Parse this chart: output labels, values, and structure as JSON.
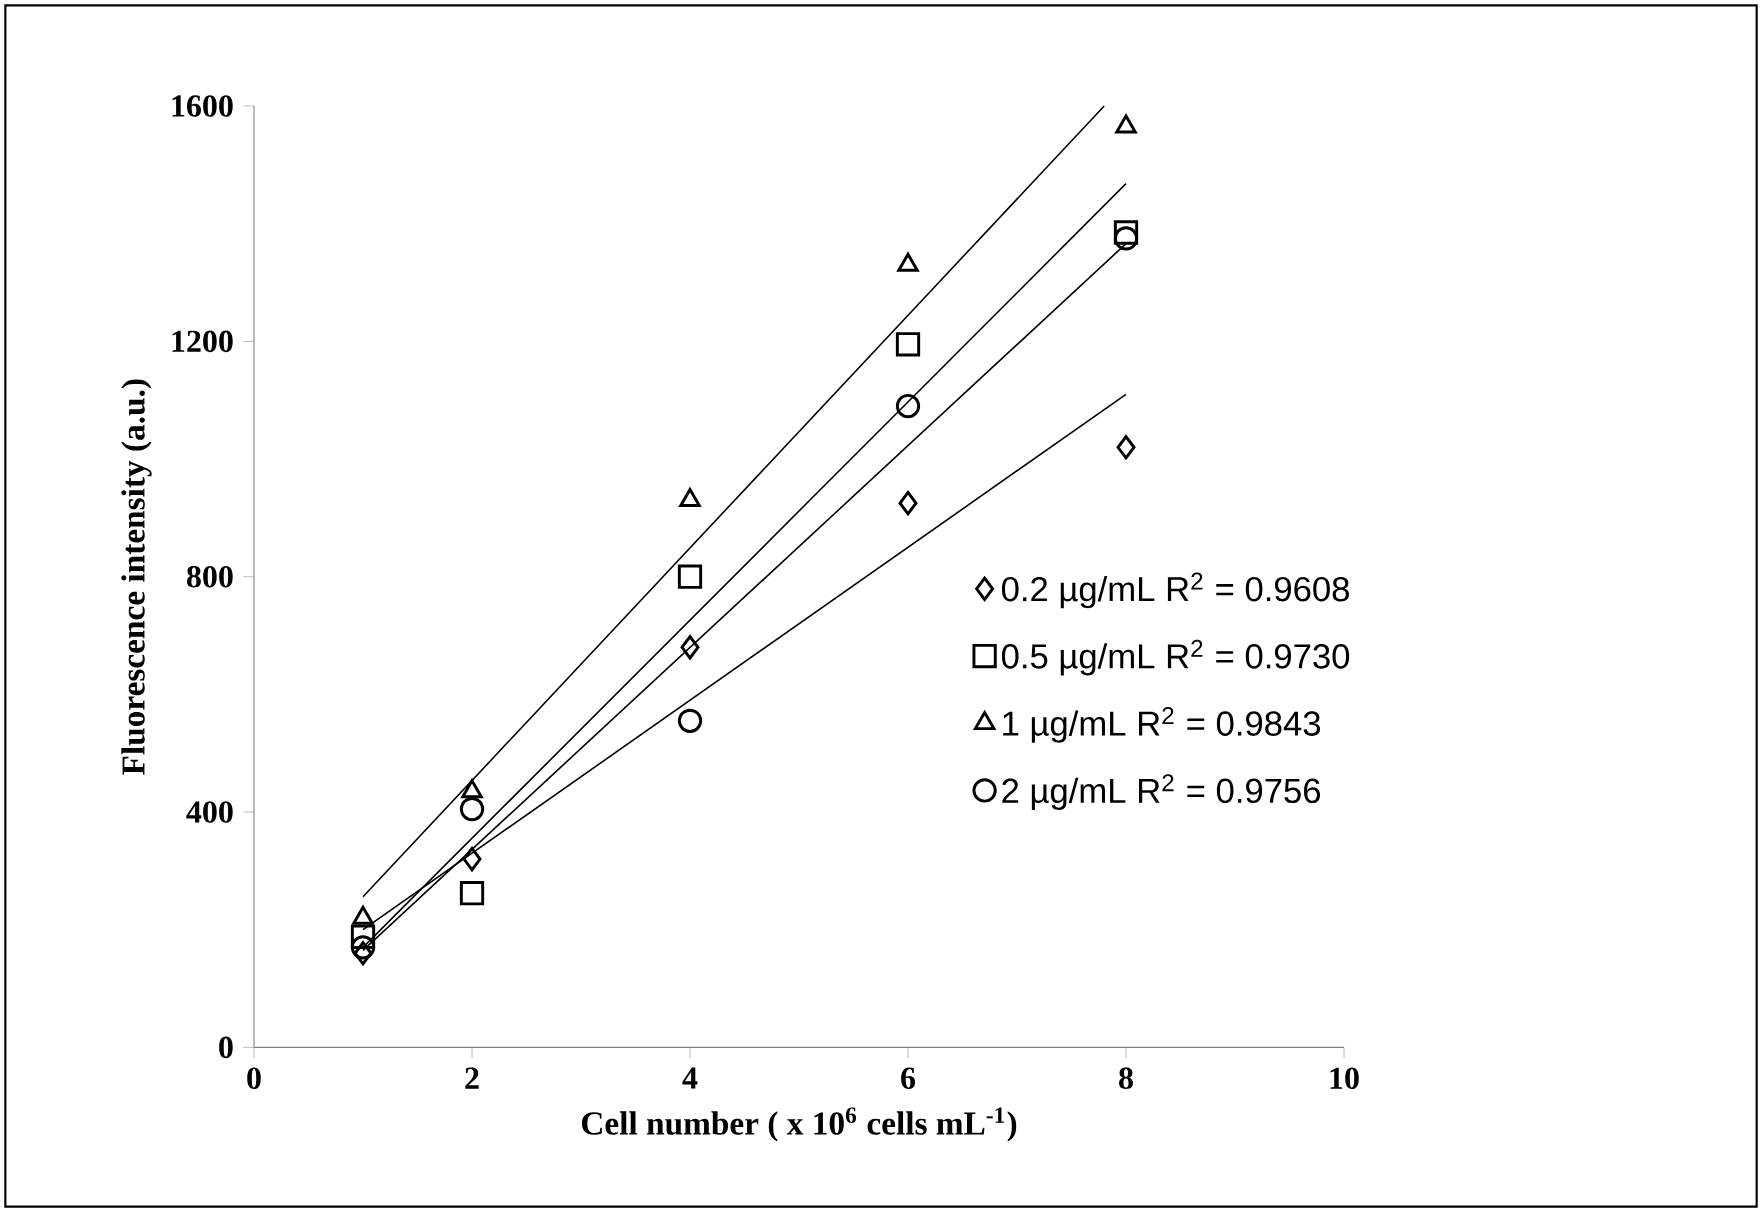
{
  "chart_data": {
    "type": "scatter",
    "xlabel": "Cell number ( x 10$^{6}$ cells mL$^{-1}$)",
    "ylabel": "Fluorescence intensity (a.u.)",
    "xlim": [
      0,
      10
    ],
    "xticks": [
      0,
      2,
      4,
      6,
      8,
      10
    ],
    "ylim": [
      0,
      1600
    ],
    "yticks": [
      0,
      400,
      800,
      1200,
      1600
    ],
    "legend": "right",
    "grid": false,
    "series": [
      {
        "name": "0.2 µg/mL  R$^{2}$ = 0.9608",
        "color": "#000000",
        "marker": "diamond",
        "x": [
          1,
          2,
          4,
          6,
          8
        ],
        "values": [
          160,
          320,
          680,
          925,
          1020
        ]
      },
      {
        "name": "0.5 µg/mL  R$^{2}$ = 0.9730",
        "color": "#000000",
        "marker": "square",
        "x": [
          1,
          2,
          4,
          6,
          8
        ],
        "values": [
          188,
          262,
          800,
          1195,
          1385
        ]
      },
      {
        "name": "1 µg/mL  R$^{2}$ = 0.9843",
        "color": "#000000",
        "marker": "triangle",
        "x": [
          1,
          2,
          4,
          6,
          8
        ],
        "values": [
          220,
          435,
          930,
          1330,
          1565
        ]
      },
      {
        "name": "2 µg/mL  R$^{2}$ = 0.9756",
        "color": "#000000",
        "marker": "circle",
        "x": [
          1,
          2,
          4,
          6,
          8
        ],
        "values": [
          170,
          405,
          555,
          1090,
          1375
        ]
      },
      {
        "type": "line",
        "color": "#000000",
        "marker": "none",
        "x": [
          1,
          8
        ],
        "values": [
          200,
          1110
        ]
      },
      {
        "type": "line",
        "color": "#000000",
        "marker": "none",
        "x": [
          1,
          8
        ],
        "values": [
          170,
          1468
        ]
      },
      {
        "type": "line",
        "color": "#000000",
        "marker": "none",
        "x": [
          1,
          7.8
        ],
        "values": [
          256,
          1600
        ]
      },
      {
        "type": "line",
        "color": "#000000",
        "marker": "none",
        "x": [
          1,
          8
        ],
        "values": [
          165,
          1366
        ]
      }
    ]
  }
}
